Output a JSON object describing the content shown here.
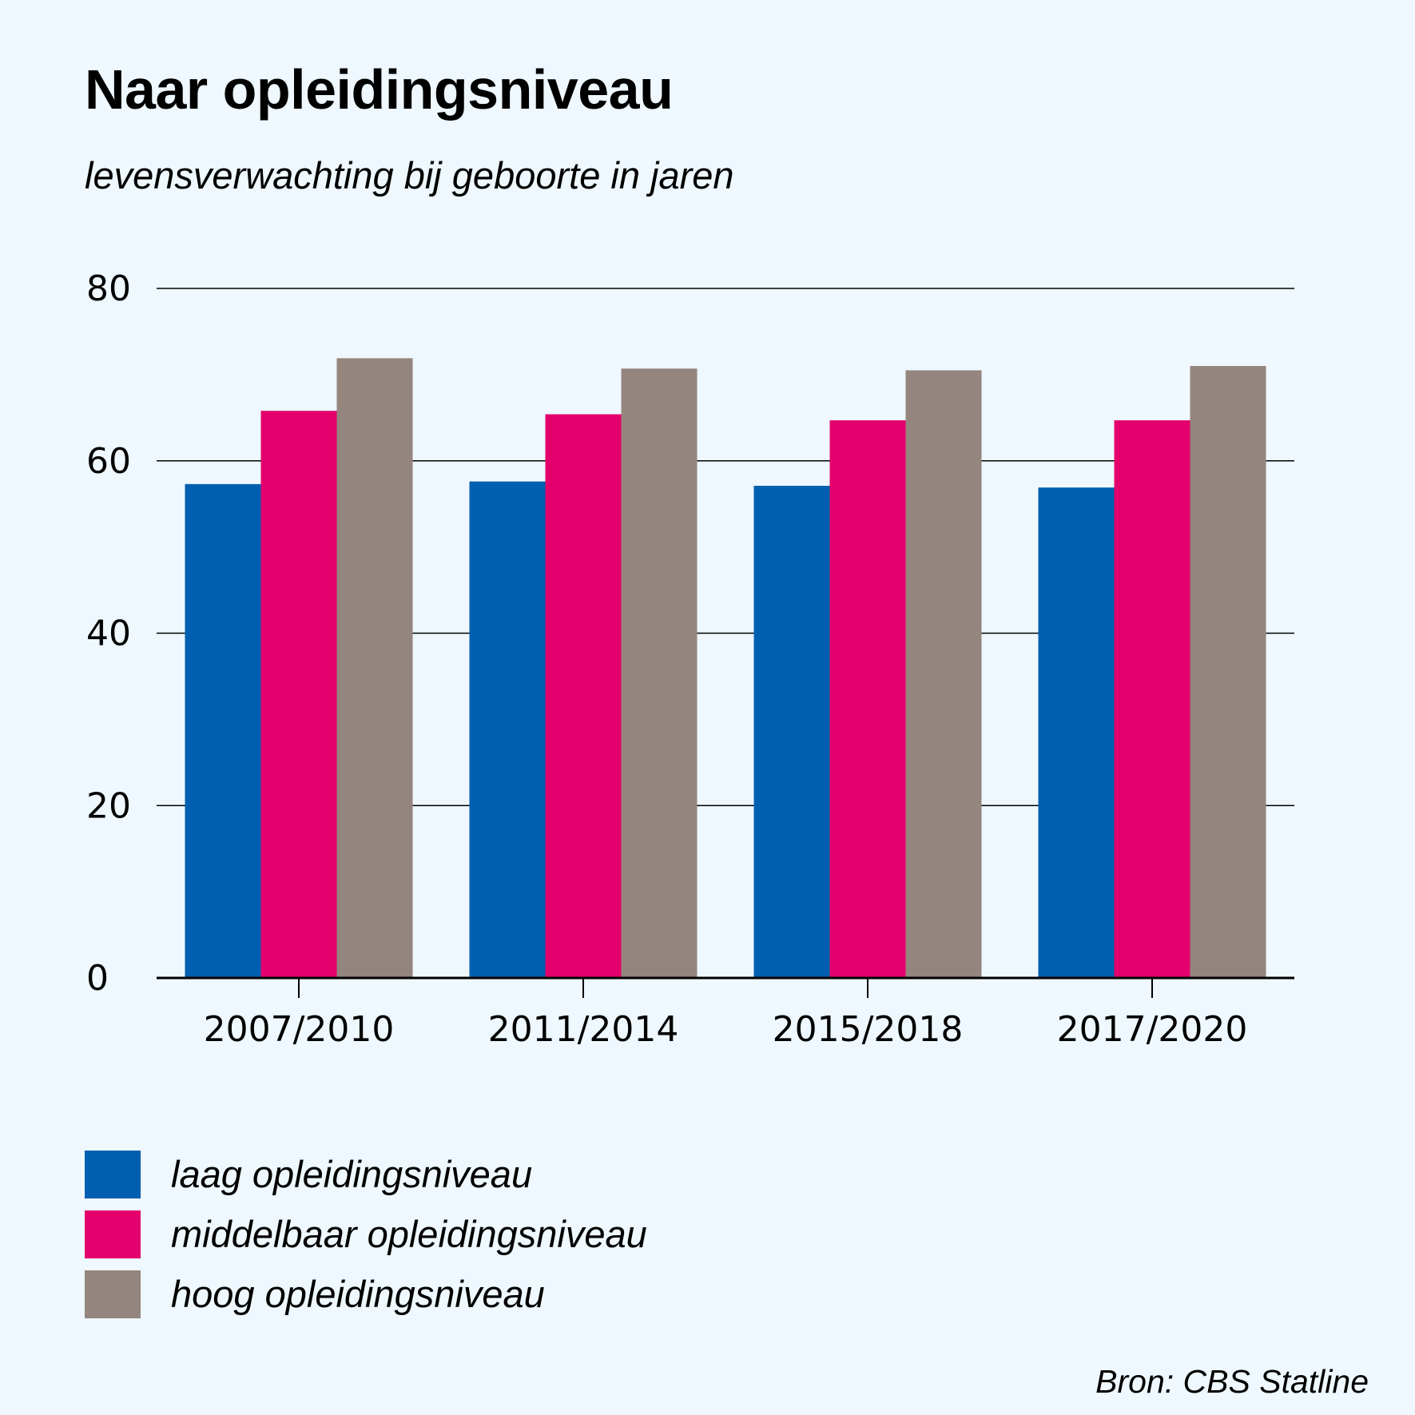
{
  "title": "Naar opleidingsniveau",
  "subtitle": "levensverwachting bij geboorte in jaren",
  "source": "Bron: CBS Statline",
  "chart_data": {
    "type": "bar",
    "title": "Naar opleidingsniveau",
    "subtitle": "levensverwachting bij geboorte in jaren",
    "categories": [
      "2007/2010",
      "2011/2014",
      "2015/2018",
      "2017/2020"
    ],
    "series": [
      {
        "name": "laag opleidingsniveau",
        "color": "#005fb0",
        "values": [
          57.3,
          57.6,
          57.1,
          56.9
        ]
      },
      {
        "name": "middelbaar opleidingsniveau",
        "color": "#e3006c",
        "values": [
          65.8,
          65.4,
          64.7,
          64.7
        ]
      },
      {
        "name": "hoog opleidingsniveau",
        "color": "#94857e",
        "values": [
          71.9,
          70.7,
          70.5,
          71.0
        ]
      }
    ],
    "yticks": [
      "0",
      "20",
      "40",
      "60",
      "80"
    ],
    "ylim": [
      0,
      80
    ],
    "grid": true,
    "xlabel": "",
    "ylabel": "",
    "legend": "bottom-left"
  }
}
